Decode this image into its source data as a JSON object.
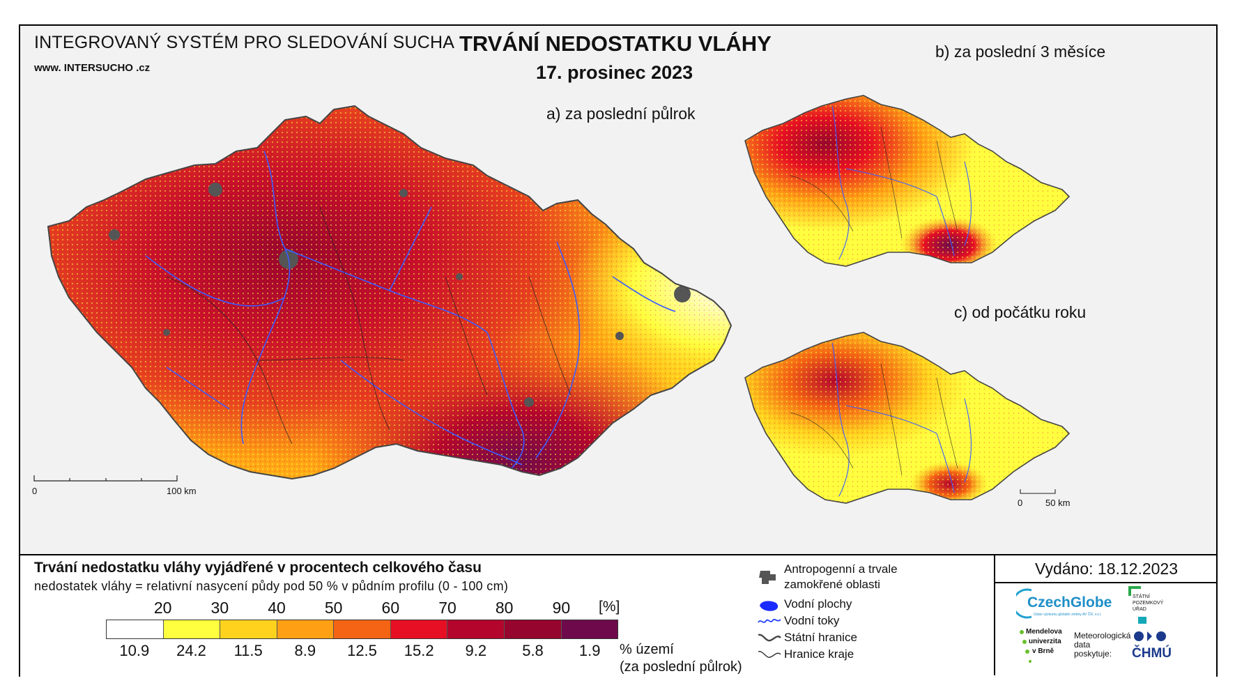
{
  "header": {
    "system_title": "INTEGROVANÝ SYSTÉM PRO SLEDOVÁNÍ SUCHA",
    "website": "www. INTERSUCHO .cz",
    "main_title": "TRVÁNÍ NEDOSTATKU VLÁHY",
    "date": "17. prosinec 2023"
  },
  "maps": {
    "a_label": "a) za poslední půlrok",
    "b_label": "b) za poslední 3 měsíce",
    "c_label": "c) od počátku roku",
    "scale_a": {
      "zero": "0",
      "end": "100 km"
    },
    "scale_small": {
      "zero": "0",
      "end": "50 km"
    }
  },
  "legend": {
    "title": "Trvání nedostatku vláhy vyjádřené v procentech celkového času",
    "subtitle": "nedostatek vláhy = relativní nasycení půdy pod 50 % v půdním profilu (0 - 100 cm)",
    "thresholds": [
      "20",
      "30",
      "40",
      "50",
      "60",
      "70",
      "80",
      "90"
    ],
    "unit": "[%]",
    "colors": [
      "#ffffff",
      "#ffff40",
      "#ffd21e",
      "#ffa014",
      "#f46414",
      "#e60f23",
      "#b4052d",
      "#96052d",
      "#6e0a4b"
    ],
    "area_percent": [
      "10.9",
      "24.2",
      "11.5",
      "8.9",
      "12.5",
      "15.2",
      "9.2",
      "5.8",
      "1.9"
    ],
    "area_label_1": "% území",
    "area_label_2": "(za poslední půlrok)"
  },
  "symbols": {
    "anthropogenic_1": "Antropogenní a trvale",
    "anthropogenic_2": "zamokřené oblasti",
    "water_bodies": "Vodní plochy",
    "rivers": "Vodní toky",
    "state_border": "Státní hranice",
    "region_border": "Hranice kraje"
  },
  "footer": {
    "issued": "Vydáno: 18.12.2023",
    "czechglobe": "CzechGlobe",
    "czechglobe_sub": "Ústav výzkumu globální změny AV ČR, v.v.i.",
    "spu_1": "STÁTNÍ",
    "spu_2": "POZEMKOVÝ",
    "spu_3": "ÚŘAD",
    "mendel_1": "Mendelova",
    "mendel_2": "univerzita",
    "mendel_3": "v Brně",
    "meteo_1": "Meteorologická",
    "meteo_2": "data",
    "meteo_3": "poskytuje:",
    "chmu": "ČHMÚ"
  }
}
